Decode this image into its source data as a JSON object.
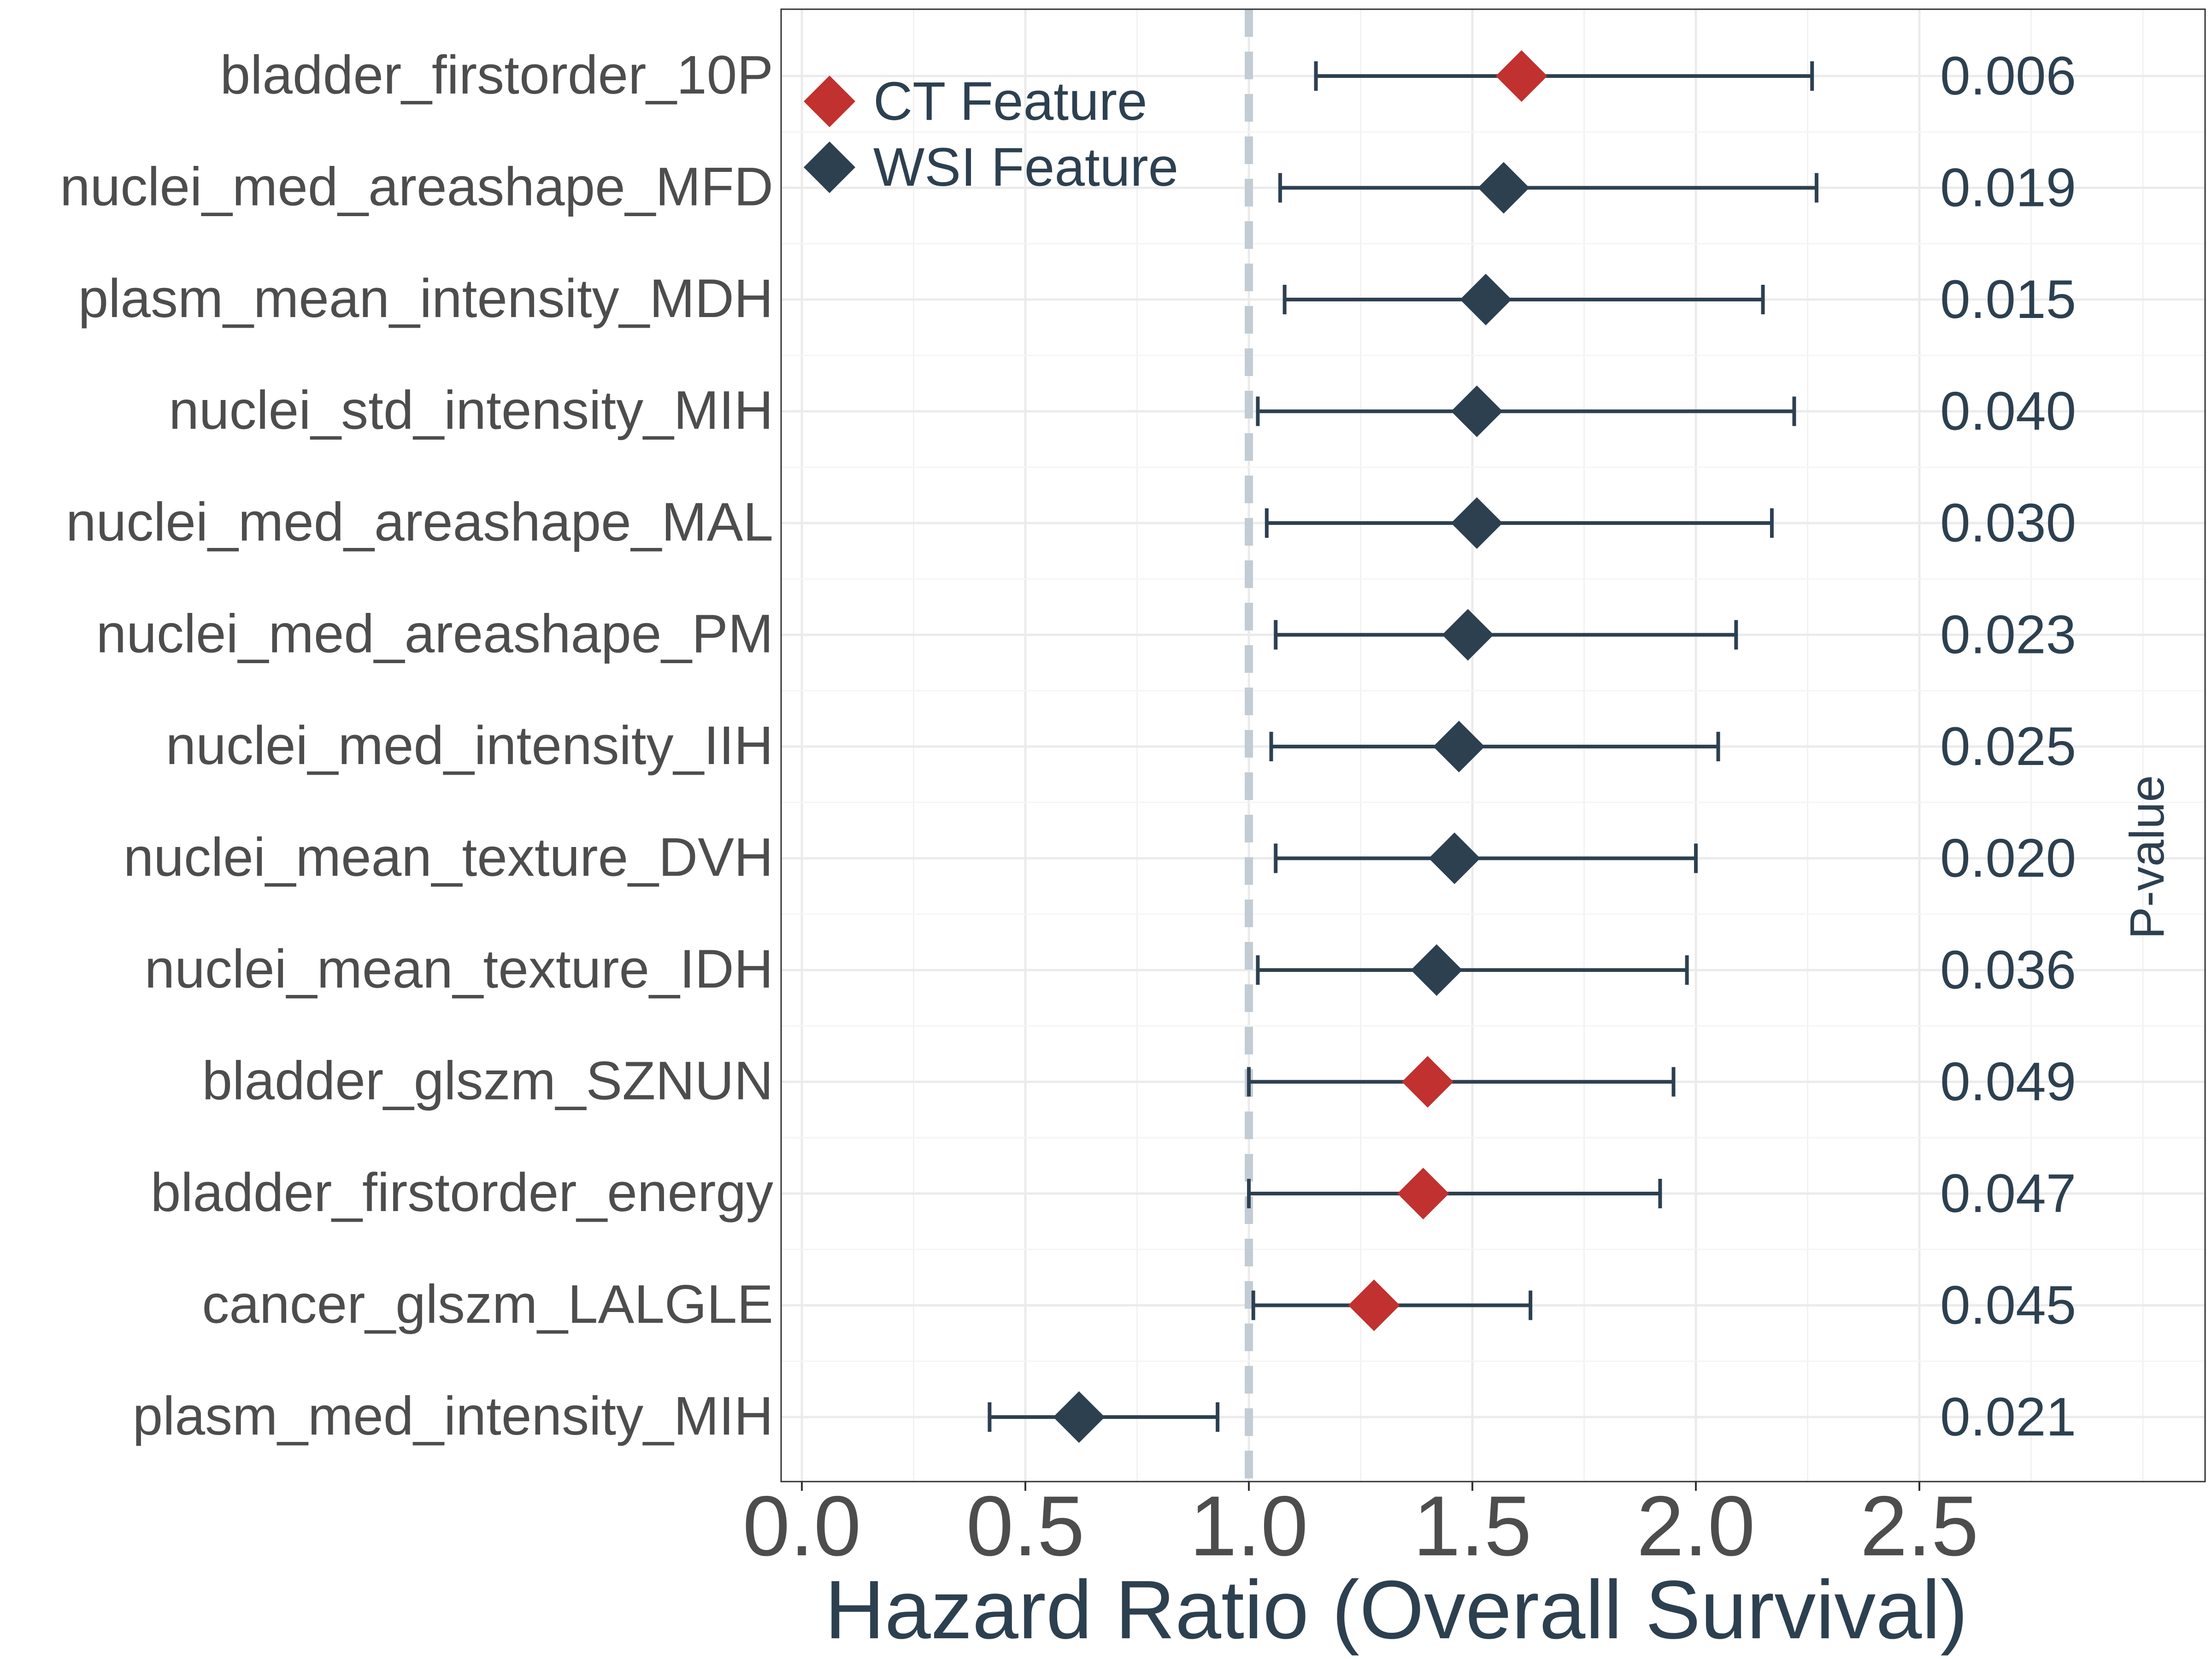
{
  "chart_data": {
    "type": "forest",
    "title": "",
    "xlabel": "Hazard Ratio (Overall Survival)",
    "ylabel": "",
    "right_axis_label": "P-value",
    "xlim": [
      -0.05,
      3.15
    ],
    "x_ticks": [
      "0.0",
      "0.5",
      "1.0",
      "1.5",
      "2.0",
      "2.5"
    ],
    "reference_line": 1.0,
    "grid": true,
    "legend": {
      "position": "top-left",
      "entries": [
        {
          "name": "CT Feature",
          "color": "#c0312f"
        },
        {
          "name": "WSI Feature",
          "color": "#2d4050"
        }
      ]
    },
    "colors": {
      "CT": "#c0312f",
      "WSI": "#2d4050",
      "ci_line": "#2d4050",
      "ref_line": "#c3ccd4",
      "axis_text": "#4d4d4d",
      "pvalue_text": "#2d4050"
    },
    "rows": [
      {
        "feature": "bladder_firstorder_10P",
        "type": "CT",
        "hr": 1.61,
        "lower": 1.15,
        "upper": 2.26,
        "p": "0.006"
      },
      {
        "feature": "nuclei_med_areashape_MFD",
        "type": "WSI",
        "hr": 1.57,
        "lower": 1.07,
        "upper": 2.27,
        "p": "0.019"
      },
      {
        "feature": "plasm_mean_intensity_MDH",
        "type": "WSI",
        "hr": 1.53,
        "lower": 1.08,
        "upper": 2.15,
        "p": "0.015"
      },
      {
        "feature": "nuclei_std_intensity_MIH",
        "type": "WSI",
        "hr": 1.51,
        "lower": 1.02,
        "upper": 2.22,
        "p": "0.040"
      },
      {
        "feature": "nuclei_med_areashape_MAL",
        "type": "WSI",
        "hr": 1.51,
        "lower": 1.04,
        "upper": 2.17,
        "p": "0.030"
      },
      {
        "feature": "nuclei_med_areashape_PM",
        "type": "WSI",
        "hr": 1.49,
        "lower": 1.06,
        "upper": 2.09,
        "p": "0.023"
      },
      {
        "feature": "nuclei_med_intensity_IIH",
        "type": "WSI",
        "hr": 1.47,
        "lower": 1.05,
        "upper": 2.05,
        "p": "0.025"
      },
      {
        "feature": "nuclei_mean_texture_DVH",
        "type": "WSI",
        "hr": 1.46,
        "lower": 1.06,
        "upper": 2.0,
        "p": "0.020"
      },
      {
        "feature": "nuclei_mean_texture_IDH",
        "type": "WSI",
        "hr": 1.42,
        "lower": 1.02,
        "upper": 1.98,
        "p": "0.036"
      },
      {
        "feature": "bladder_glszm_SZNUN",
        "type": "CT",
        "hr": 1.4,
        "lower": 1.0,
        "upper": 1.95,
        "p": "0.049"
      },
      {
        "feature": "bladder_firstorder_energy",
        "type": "CT",
        "hr": 1.39,
        "lower": 1.0,
        "upper": 1.92,
        "p": "0.047"
      },
      {
        "feature": "cancer_glszm_LALGLE",
        "type": "CT",
        "hr": 1.28,
        "lower": 1.01,
        "upper": 1.63,
        "p": "0.045"
      },
      {
        "feature": "plasm_med_intensity_MIH",
        "type": "WSI",
        "hr": 0.62,
        "lower": 0.42,
        "upper": 0.93,
        "p": "0.021"
      }
    ]
  }
}
